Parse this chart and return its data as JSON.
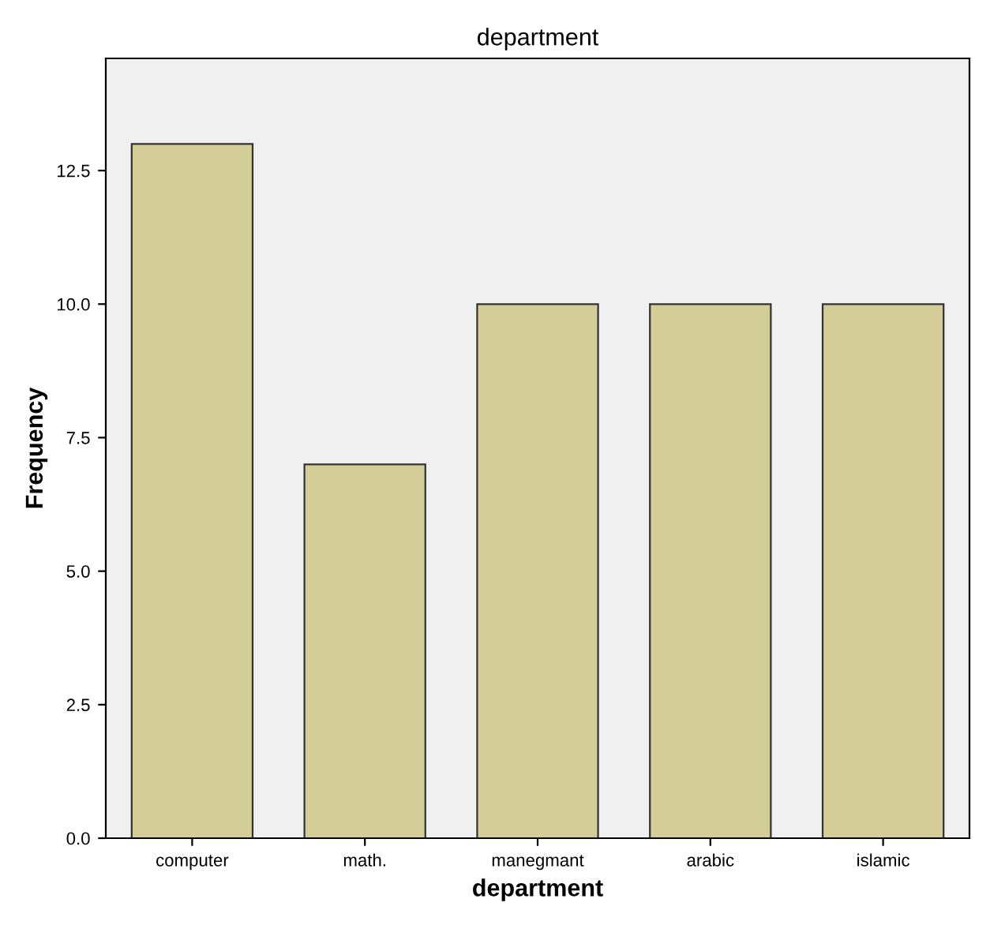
{
  "chart_data": {
    "type": "bar",
    "title": "department",
    "xlabel": "department",
    "ylabel": "Frequency",
    "categories": [
      "computer",
      "math.",
      "manegmant",
      "arabic",
      "islamic"
    ],
    "values": [
      13,
      7,
      10,
      10,
      10
    ],
    "color": "#d3ce97",
    "ylim": [
      0,
      14.6
    ],
    "yticks": [
      {
        "value": 0,
        "label": "0.0"
      },
      {
        "value": 2.5,
        "label": "2.5"
      },
      {
        "value": 5,
        "label": "5.0"
      },
      {
        "value": 7.5,
        "label": "7.5"
      },
      {
        "value": 10,
        "label": "10.0"
      },
      {
        "value": 12.5,
        "label": "12.5"
      }
    ],
    "grid": false,
    "legend": false
  }
}
